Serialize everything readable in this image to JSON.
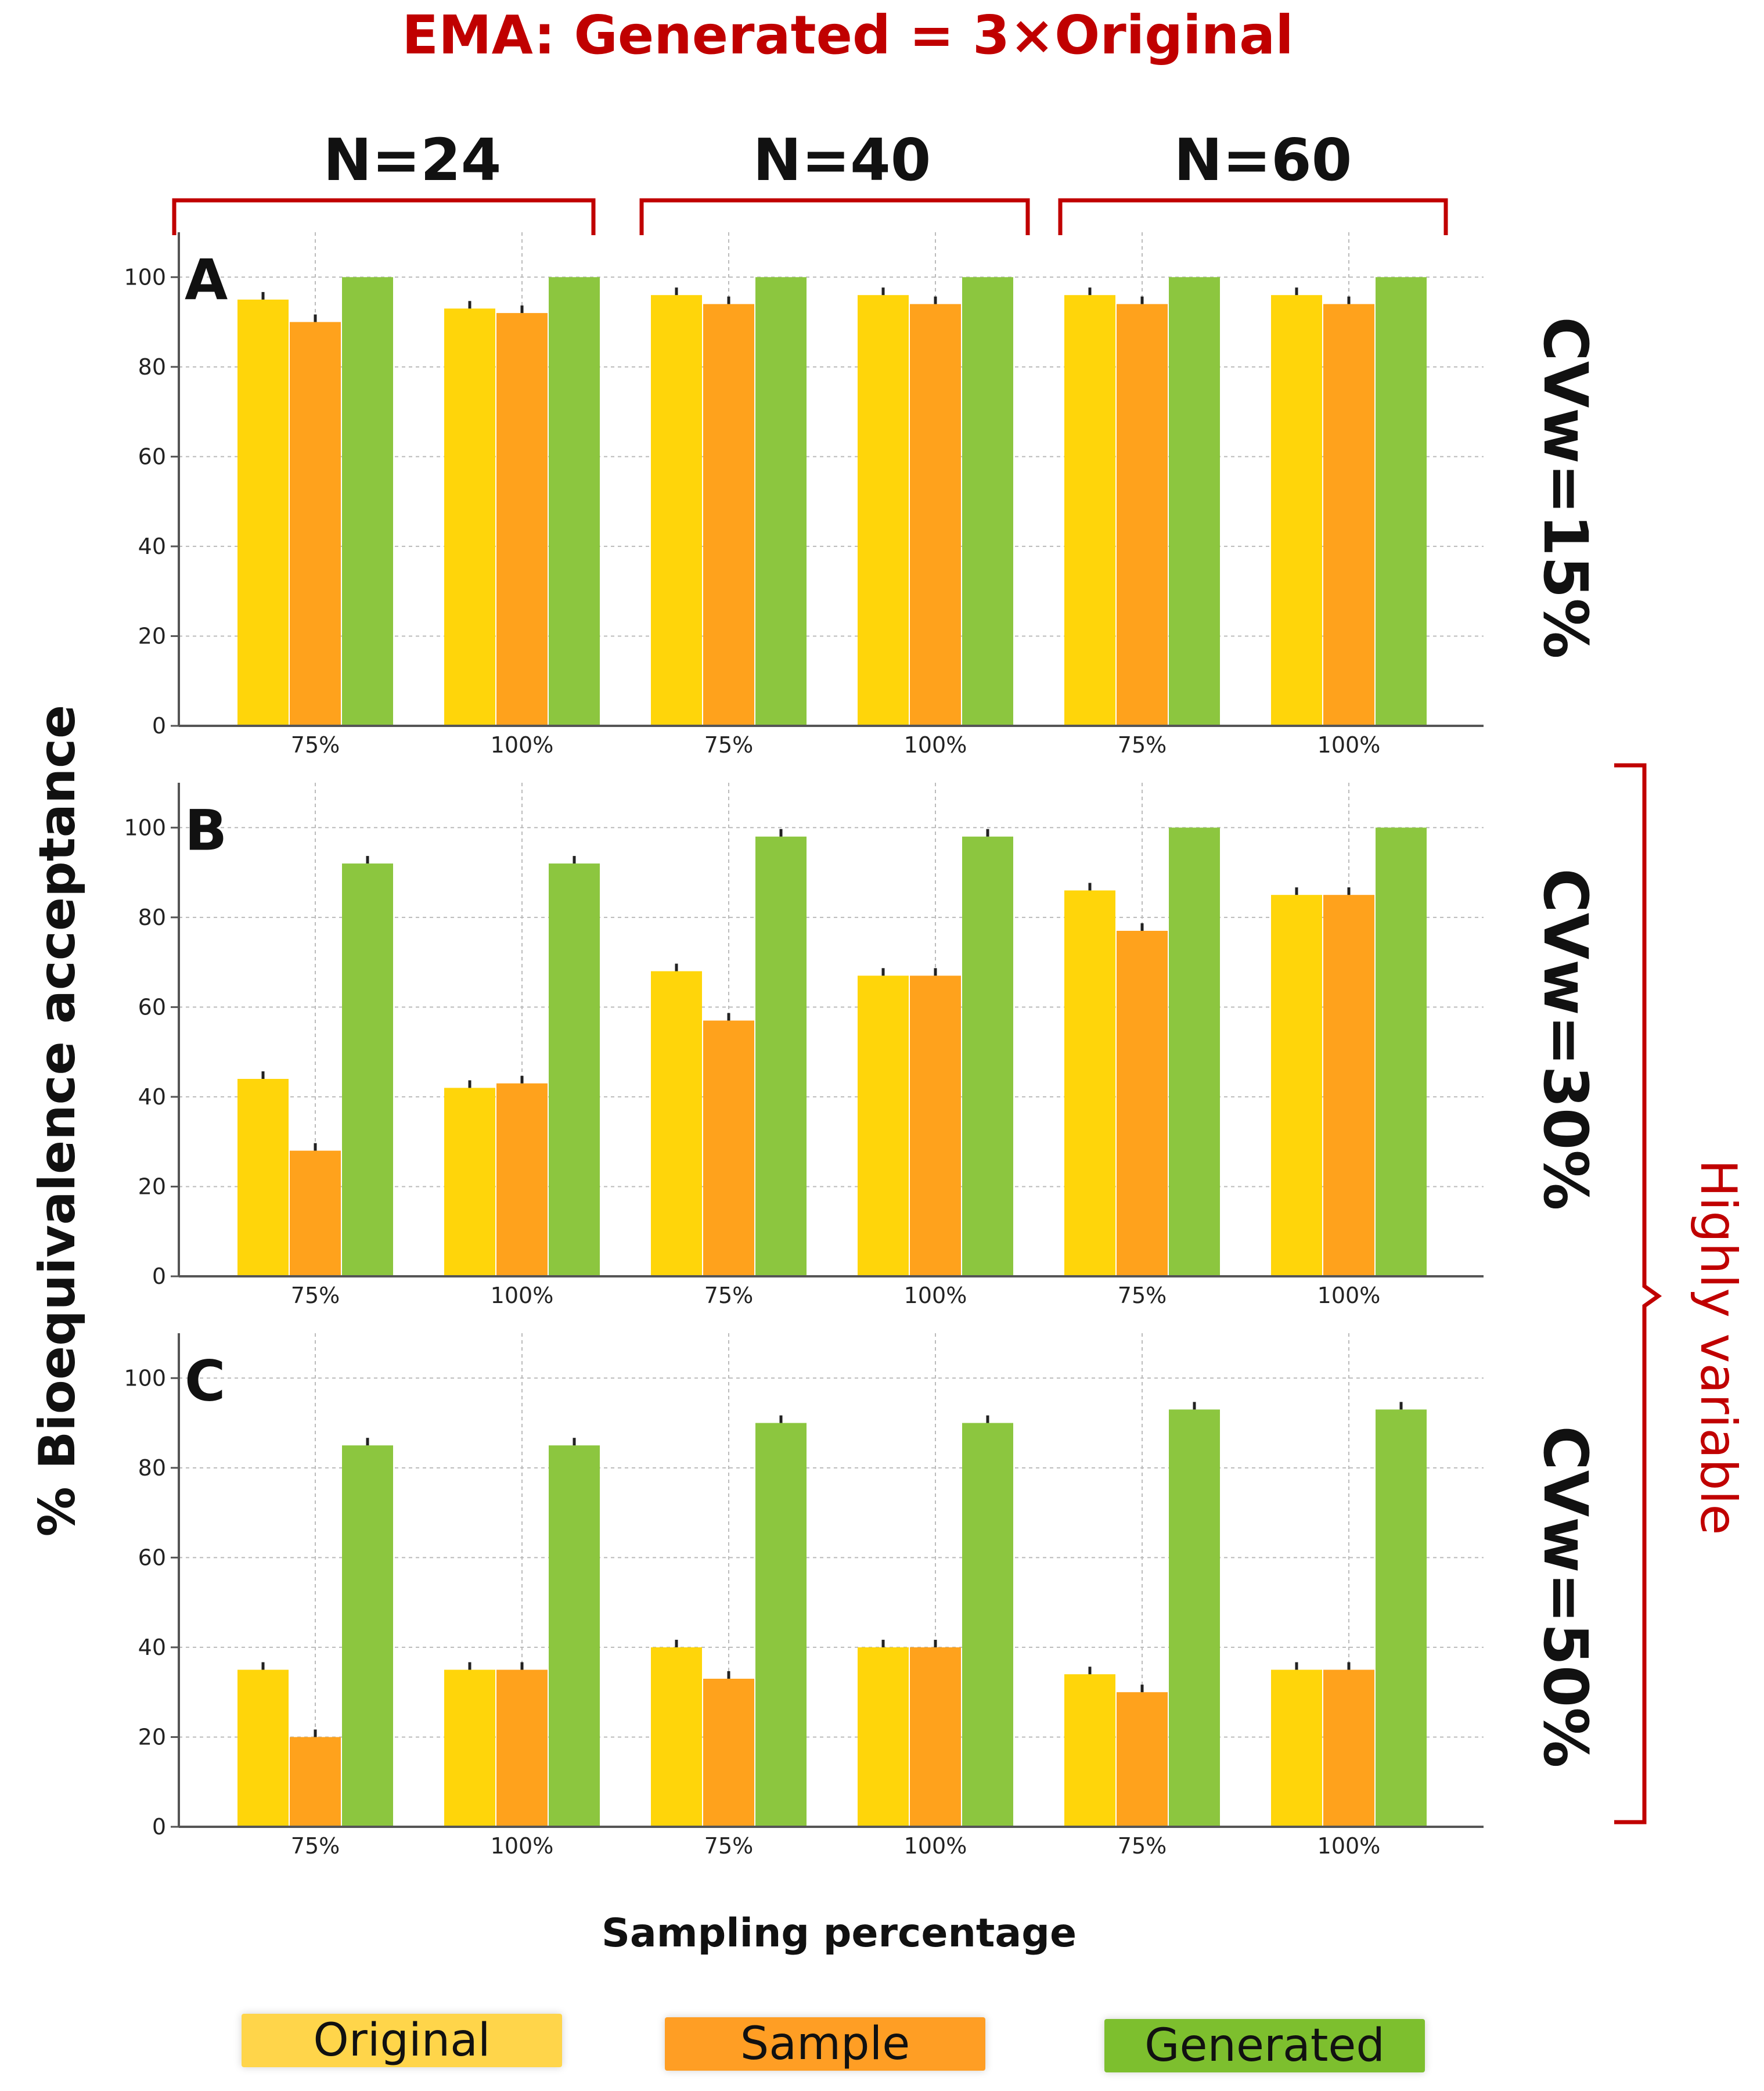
{
  "title": "EMA: Generated = 3×Original",
  "group_labels": [
    "N=24",
    "N=40",
    "N=60"
  ],
  "y_axis_label": "% Bioequivalence acceptance",
  "x_axis_label": "Sampling percentage",
  "highly_variable_label": "Highly variable",
  "colors": {
    "original": "#FFD50A",
    "sample": "#FFA21C",
    "generated": "#8CC63F",
    "accent": "#C00000",
    "grid": "#BBBBBB",
    "axis": "#555555"
  },
  "legend": [
    {
      "label": "Original",
      "color": "#FFD54A"
    },
    {
      "label": "Sample",
      "color": "#FF9E24"
    },
    {
      "label": "Generated",
      "color": "#7DBF2E"
    }
  ],
  "chart_data": [
    {
      "type": "bar",
      "panel": "A",
      "cv_label": "CVw=15%",
      "categories": [
        "75%",
        "100%",
        "75%",
        "100%",
        "75%",
        "100%"
      ],
      "series": [
        {
          "name": "Original",
          "values": [
            95,
            93,
            96,
            96,
            96,
            96
          ]
        },
        {
          "name": "Sample",
          "values": [
            90,
            92,
            94,
            94,
            94,
            94
          ]
        },
        {
          "name": "Generated",
          "values": [
            100,
            100,
            100,
            100,
            100,
            100
          ]
        }
      ],
      "yticks": [
        0,
        20,
        40,
        60,
        80,
        100
      ],
      "ylim": [
        0,
        110
      ],
      "grid": true
    },
    {
      "type": "bar",
      "panel": "B",
      "cv_label": "CVw=30%",
      "categories": [
        "75%",
        "100%",
        "75%",
        "100%",
        "75%",
        "100%"
      ],
      "series": [
        {
          "name": "Original",
          "values": [
            44,
            42,
            68,
            67,
            86,
            85
          ]
        },
        {
          "name": "Sample",
          "values": [
            28,
            43,
            57,
            67,
            77,
            85
          ]
        },
        {
          "name": "Generated",
          "values": [
            92,
            92,
            98,
            98,
            100,
            100
          ]
        }
      ],
      "yticks": [
        0,
        20,
        40,
        60,
        80,
        100
      ],
      "ylim": [
        0,
        110
      ],
      "grid": true
    },
    {
      "type": "bar",
      "panel": "C",
      "cv_label": "CVw=50%",
      "categories": [
        "75%",
        "100%",
        "75%",
        "100%",
        "75%",
        "100%"
      ],
      "series": [
        {
          "name": "Original",
          "values": [
            35,
            35,
            40,
            40,
            34,
            35
          ]
        },
        {
          "name": "Sample",
          "values": [
            20,
            35,
            33,
            40,
            30,
            35
          ]
        },
        {
          "name": "Generated",
          "values": [
            85,
            85,
            90,
            90,
            93,
            93
          ]
        }
      ],
      "yticks": [
        0,
        20,
        40,
        60,
        80,
        100
      ],
      "ylim": [
        0,
        110
      ],
      "grid": true
    }
  ]
}
